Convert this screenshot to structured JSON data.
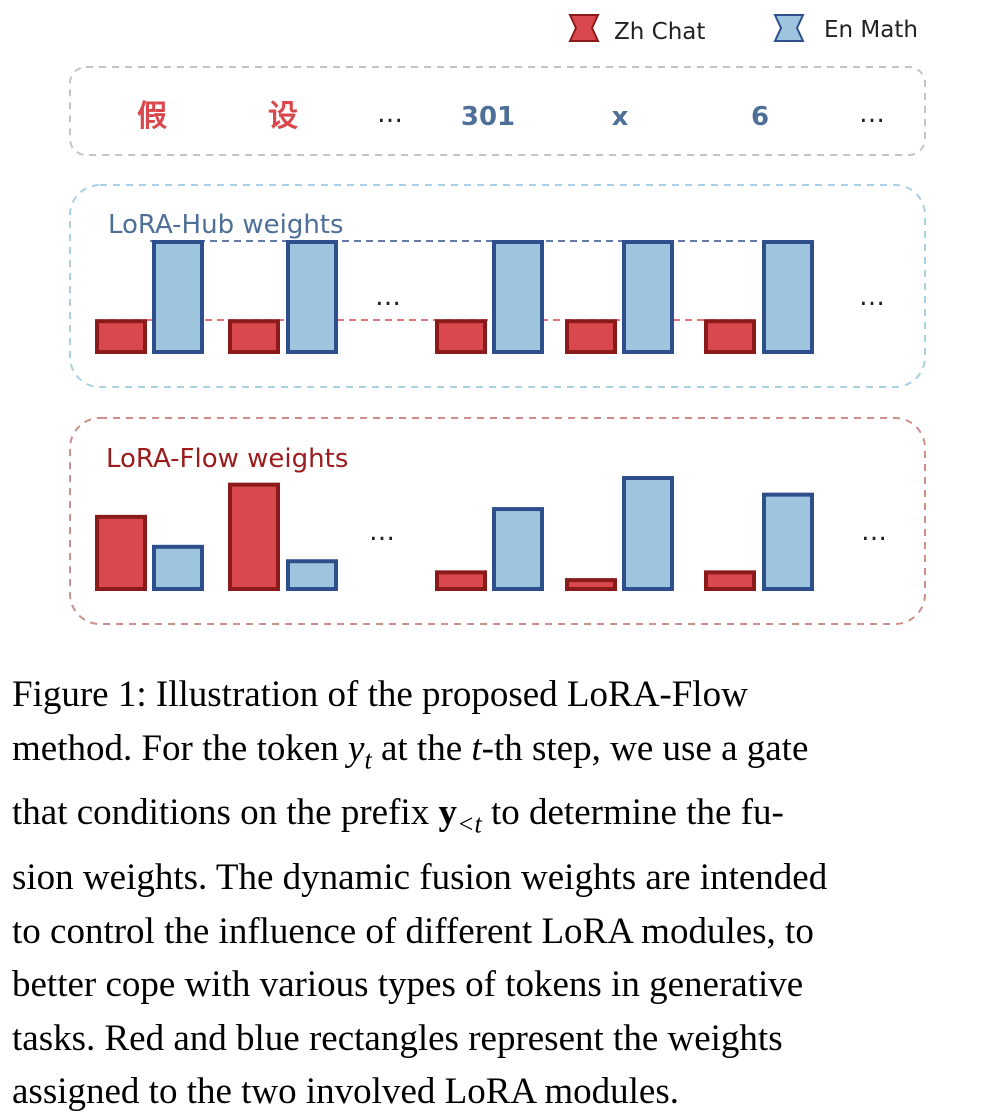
{
  "legend": [
    {
      "label": "Zh Chat",
      "fill": "#d9484d",
      "stroke": "#8b1a1a"
    },
    {
      "label": "En Math",
      "fill": "#9ec5de",
      "stroke": "#2f4f8c"
    }
  ],
  "tokens": [
    {
      "text": "假",
      "color": "#d9484d"
    },
    {
      "text": "设",
      "color": "#d9484d"
    },
    {
      "text": "…",
      "color": "#222222"
    },
    {
      "text": "301",
      "color": "#4e6f97"
    },
    {
      "text": "x",
      "color": "#4e6f97"
    },
    {
      "text": "6",
      "color": "#4e6f97"
    },
    {
      "text": "…",
      "color": "#222222"
    }
  ],
  "colors": {
    "token_box_border": "#c4c4c4",
    "hub_box_border": "#a9d0e4",
    "flow_box_border": "#cf8e88",
    "zh_fill": "#d9484d",
    "zh_stroke": "#8b1a1a",
    "en_fill": "#9ec5de",
    "en_stroke": "#2f4f8c",
    "hub_title": "#4e6f97",
    "flow_title": "#9b1c1c"
  },
  "hub_panel": {
    "title": "LoRA-Hub weights",
    "ellipsis": [
      "…",
      "…"
    ],
    "weights": [
      {
        "zh": 0.28,
        "en": 1.0
      },
      {
        "zh": 0.28,
        "en": 1.0
      },
      {
        "zh": 0.28,
        "en": 1.0
      },
      {
        "zh": 0.28,
        "en": 1.0
      },
      {
        "zh": 0.28,
        "en": 1.0
      }
    ]
  },
  "flow_panel": {
    "title": "LoRA-Flow weights",
    "ellipsis": [
      "…",
      "…"
    ],
    "weights": [
      {
        "zh": 0.65,
        "en": 0.38
      },
      {
        "zh": 0.94,
        "en": 0.25
      },
      {
        "zh": 0.15,
        "en": 0.72
      },
      {
        "zh": 0.08,
        "en": 1.0
      },
      {
        "zh": 0.15,
        "en": 0.85
      }
    ]
  },
  "caption": {
    "l1": "Figure 1:  Illustration of the proposed LoRA-Flow",
    "l2a": "method. For the token ",
    "var_y": "y",
    "sub_t": "t",
    "l2b": " at the ",
    "var_t": "t",
    "l2c": "-th step, we use a gate",
    "l3a": "that conditions on the prefix ",
    "bold_y": "y",
    "sub_lt": "<t",
    "l3b": " to determine the fu-",
    "l4": "sion weights. The dynamic fusion weights are intended",
    "l5": "to control the influence of different LoRA modules, to",
    "l6": "better cope with various types of tokens in generative",
    "l7": "tasks.  Red and blue rectangles represent the weights",
    "l8": "assigned to the two involved LoRA modules."
  }
}
